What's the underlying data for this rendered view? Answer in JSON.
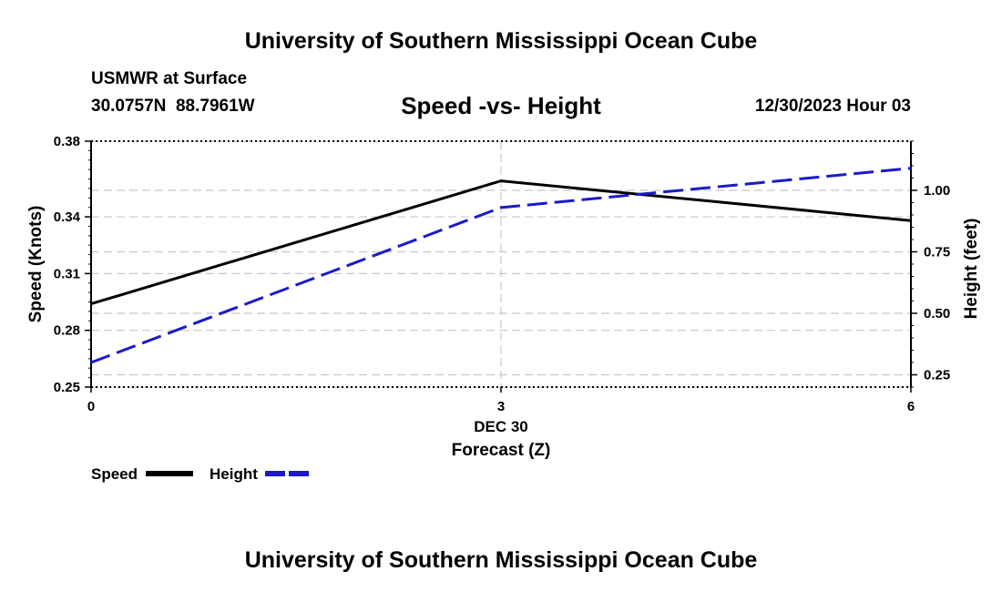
{
  "header": {
    "title": "University of Southern Mississippi Ocean Cube",
    "station_name": "USMWR at Surface",
    "coordinates": "30.0757N  88.7961W",
    "chart_title": "Speed -vs- Height",
    "datetime": "12/30/2023 Hour 03"
  },
  "footer": {
    "title": "University of Southern Mississippi Ocean Cube"
  },
  "colors": {
    "speed": "#000000",
    "height": "#1a1acc",
    "grid": "#c8c8c8"
  },
  "chart_data": {
    "type": "line",
    "title": "Speed -vs- Height",
    "xlabel": "Forecast (Z)",
    "x_date_label": "DEC 30",
    "x": [
      0,
      3,
      6
    ],
    "x_ticks": [
      "0",
      "3",
      "6"
    ],
    "xlim": [
      0,
      6
    ],
    "ylabel_left": "Speed (Knots)",
    "ylim_left": [
      0.25,
      0.38
    ],
    "yticks_left": [
      "0.25",
      "0.28",
      "0.31",
      "0.34",
      "0.38"
    ],
    "ylabel_right": "Height (feet)",
    "ylim_right": [
      0.2,
      1.2
    ],
    "yticks_right": [
      "0.25",
      "0.50",
      "0.75",
      "1.00"
    ],
    "grid": true,
    "legend": "bottom-left",
    "series": [
      {
        "name": "Speed",
        "axis": "left",
        "style": "solid",
        "values": [
          0.294,
          0.359,
          0.338
        ]
      },
      {
        "name": "Height",
        "axis": "right",
        "style": "dashed",
        "values": [
          0.3,
          0.93,
          1.09
        ]
      }
    ]
  }
}
